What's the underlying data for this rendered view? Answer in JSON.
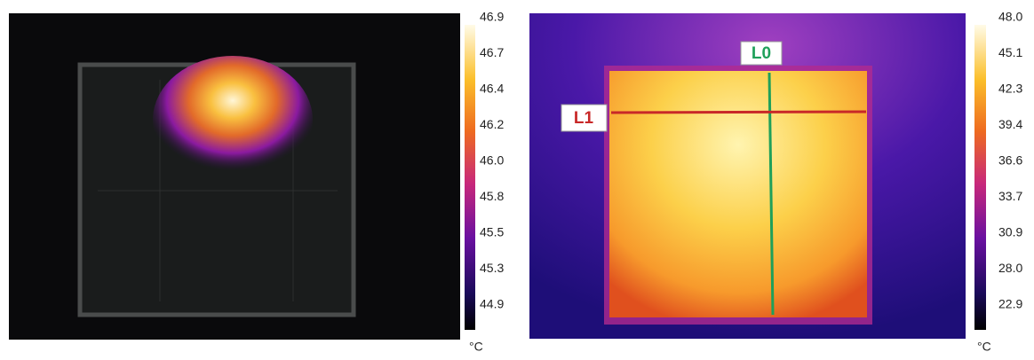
{
  "left_panel": {
    "scale_labels": [
      "46.9",
      "46.7",
      "46.4",
      "46.2",
      "46.0",
      "45.8",
      "45.5",
      "45.3",
      "44.9"
    ],
    "unit": "°C"
  },
  "right_panel": {
    "scale_labels": [
      "48.0",
      "45.1",
      "42.3",
      "39.4",
      "36.6",
      "33.7",
      "30.9",
      "28.0",
      "22.9"
    ],
    "unit": "°C",
    "markers": [
      "L0",
      "L1"
    ]
  }
}
